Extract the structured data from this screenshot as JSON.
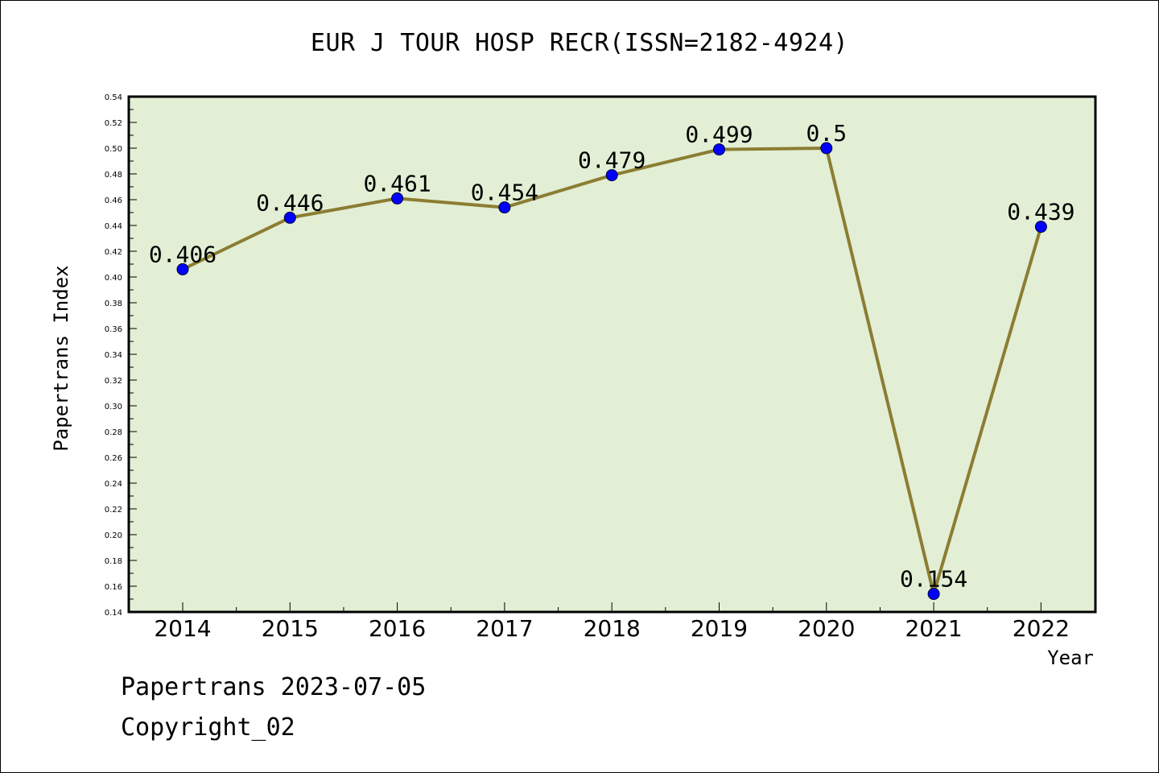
{
  "title": "EUR J TOUR HOSP RECR(ISSN=2182-4924)",
  "footer": {
    "line1": "Papertrans 2023-07-05",
    "line2": "Copyright_02"
  },
  "colors": {
    "plot_background": "#e2efd5",
    "line": "#8b7d32",
    "marker": "#0000ff",
    "axis": "#000000"
  },
  "chart_data": {
    "type": "line",
    "title": "EUR J TOUR HOSP RECR(ISSN=2182-4924)",
    "xlabel": "Year",
    "ylabel": "Papertrans Index",
    "categories": [
      "2014",
      "2015",
      "2016",
      "2017",
      "2018",
      "2019",
      "2020",
      "2021",
      "2022"
    ],
    "values": [
      0.406,
      0.446,
      0.461,
      0.454,
      0.479,
      0.499,
      0.5,
      0.154,
      0.439
    ],
    "data_labels": [
      "0.406",
      "0.446",
      "0.461",
      "0.454",
      "0.479",
      "0.499",
      "0.5",
      "0.154",
      "0.439"
    ],
    "yticks": [
      "0.14",
      "0.16",
      "0.18",
      "0.20",
      "0.22",
      "0.24",
      "0.26",
      "0.28",
      "0.30",
      "0.32",
      "0.34",
      "0.36",
      "0.38",
      "0.40",
      "0.42",
      "0.44",
      "0.46",
      "0.48",
      "0.50",
      "0.52",
      "0.54"
    ],
    "ylim": [
      0.14,
      0.54
    ],
    "grid": false,
    "legend": "none"
  }
}
